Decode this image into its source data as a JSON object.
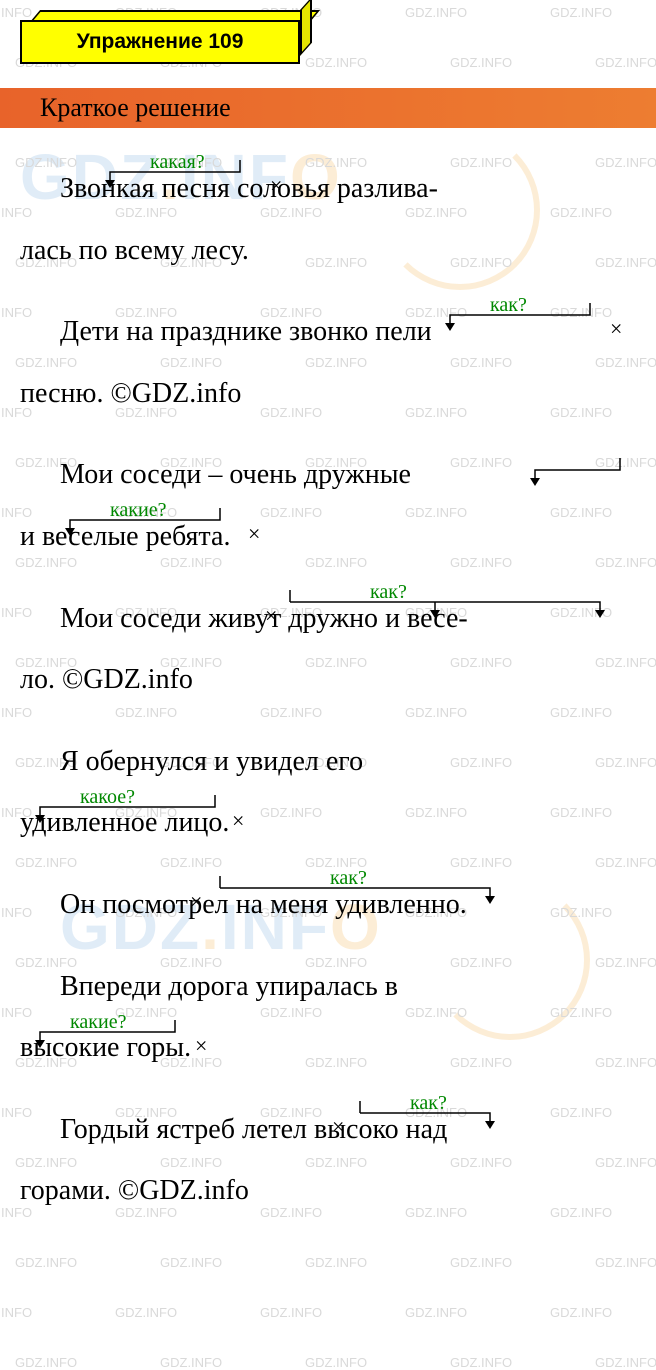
{
  "header": {
    "title": "Упражнение 109",
    "bg_color": "#ffff00",
    "border_color": "#000000",
    "font_size": 21
  },
  "subtitle": {
    "text": "Краткое решение",
    "bg_color": "#ed7d31",
    "font_size": 26
  },
  "watermark": {
    "text": "GDZ.INFO",
    "text_color": "#d9d9d9",
    "logo_text": "GDZ.INFO"
  },
  "annotations": {
    "q_kakaya": "какая?",
    "q_kak": "как?",
    "q_kakie": "какие?",
    "q_kakoe": "какое?",
    "color": "#008800",
    "font_size": 20
  },
  "arrow_style": {
    "stroke": "#000000",
    "stroke_width": 1.5
  },
  "sentences": [
    {
      "line1_indent": true,
      "line1": "Звонкая песня соловья разлива-",
      "line2": "лась по всему лесу.",
      "question": "какая?",
      "x_after": "песня",
      "arrow_from": "песня",
      "arrow_to": "Звонкая"
    },
    {
      "line1_indent": true,
      "line1": "Дети на празднике звонко пели",
      "line2": "песню. ©GDZ.info",
      "question": "как?",
      "x_after": "пели",
      "arrow_from": "пели",
      "arrow_to": "звонко"
    },
    {
      "line1_indent": true,
      "line1": "Мои соседи – очень дружные",
      "line2": "и   веселые ребята.",
      "question": "какие?",
      "x_after": "ребята",
      "arrow_from": "ребята",
      "arrow_to_list": [
        "дружные",
        "веселые"
      ]
    },
    {
      "line1_indent": true,
      "line1": "Мои соседи живут дружно и весе-",
      "line2": "ло. ©GDZ.info",
      "question": "как?",
      "x_before": "живут",
      "arrow_from": "живут",
      "arrow_to_list": [
        "дружно",
        "весе-"
      ]
    },
    {
      "line1_indent": true,
      "line1": "Я обернулся и увидел его",
      "line2": "удивленное лицо.",
      "question": "какое?",
      "x_after": "лицо",
      "arrow_from": "лицо",
      "arrow_to": "удивленное"
    },
    {
      "line1_indent": true,
      "line1": "Он посмотрел на меня  удивленно.",
      "question": "как?",
      "x_before": "посмотрел",
      "arrow_from": "посмотрел",
      "arrow_to": "удивленно"
    },
    {
      "line1_indent": true,
      "line1": "Впереди дорога упиралась в",
      "line2": "высокие горы.",
      "question": "какие?",
      "x_after": "горы",
      "arrow_from": "горы",
      "arrow_to": "высокие"
    },
    {
      "line1_indent": true,
      "line1": "Гордый ястреб летел высоко над",
      "line2": "горами.  ©GDZ.info",
      "question": "как?",
      "x_before": "летел",
      "arrow_from": "летел",
      "arrow_to": "высоко"
    }
  ],
  "text": {
    "s1l1a": "Звонкая ",
    "s1l1b": "песня",
    "s1l1c": " соловья разлива-",
    "s1l2": "лась по всему лесу.",
    "s2l1a": "Дети на празднике ",
    "s2l1b": "звонко",
    "s2l1c": " ",
    "s2l1d": "пели",
    "s2l2": "песню. ©GDZ.info",
    "s3l1a": "Мои  соседи  –  очень  ",
    "s3l1b": "дружные",
    "s3l2a": "и   ",
    "s3l2b": "веселые",
    "s3l2c": " ",
    "s3l2d": "ребята",
    "s3l2e": ".",
    "s4l1a": "Мои соседи ",
    "s4l1b": "живут",
    "s4l1c": " ",
    "s4l1d": "дружно",
    "s4l1e": " и ",
    "s4l1f": "весе-",
    "s4l2": "ло. ©GDZ.info",
    "s5l1": "Я   обернулся   и   увидел   его",
    "s5l2a": "удивленное",
    "s5l2b": " ",
    "s5l2c": "лицо",
    "s5l2d": ".",
    "s6l1a": "Он ",
    "s6l1b": "посмотрел",
    "s6l1c": " на меня  ",
    "s6l1d": "удивленно",
    "s6l1e": ".",
    "s7l1": "Впереди  дорога  упиралась  в",
    "s7l2a": "высокие",
    "s7l2b": " ",
    "s7l2c": "горы",
    "s7l2d": ".",
    "s8l1a": "Гордый ястреб ",
    "s8l1b": "летел",
    "s8l1c": " ",
    "s8l1d": "высоко",
    "s8l1e": " над",
    "s8l2": "горами.  ©GDZ.info"
  }
}
